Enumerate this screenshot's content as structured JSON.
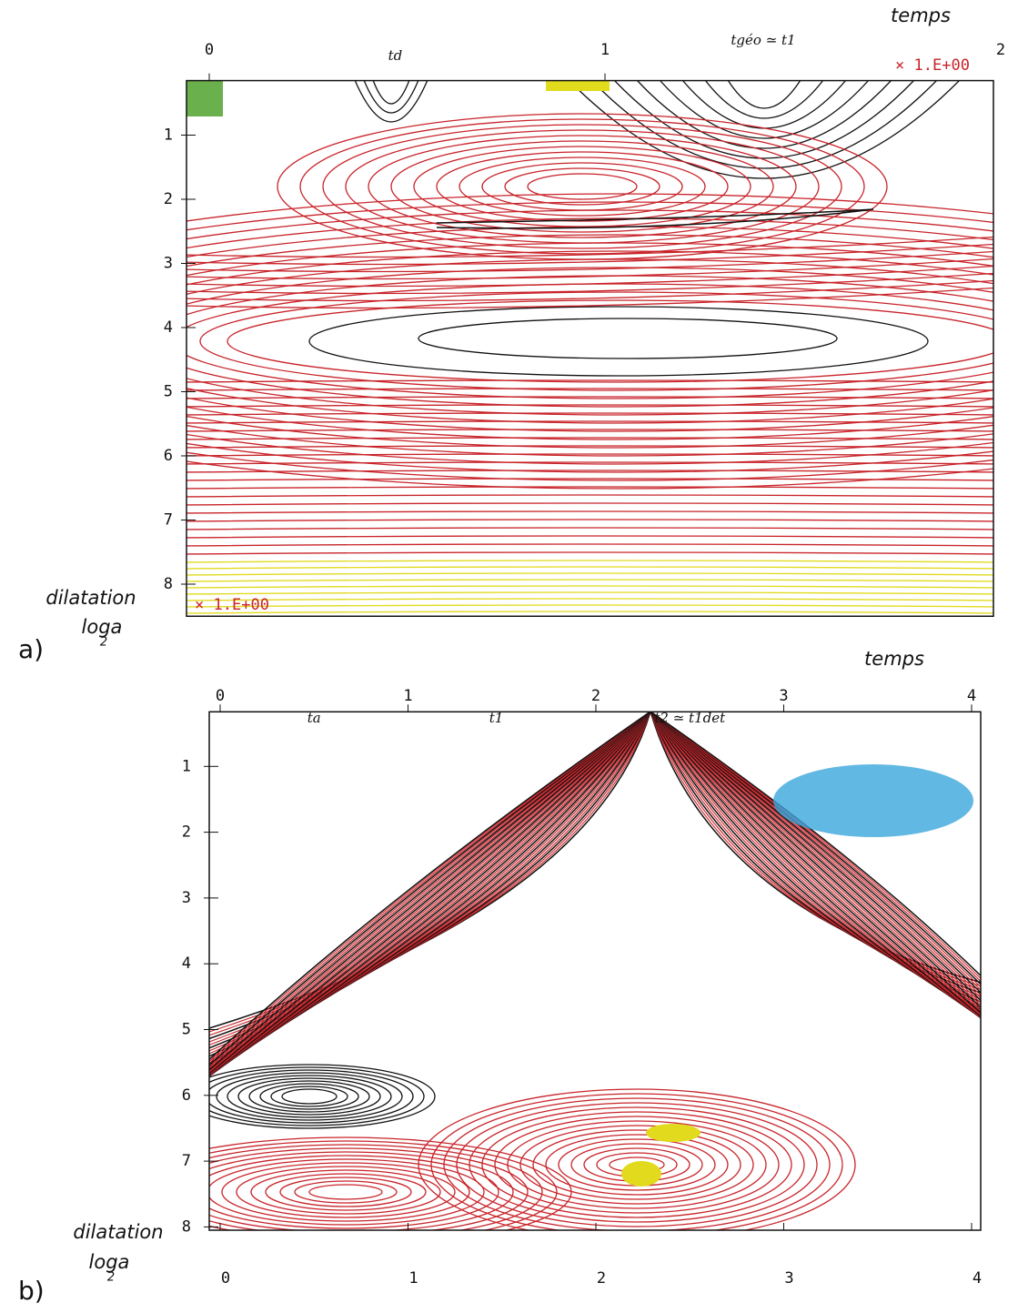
{
  "chart_data": [
    {
      "type": "contour",
      "panel": "a)",
      "xlabel": "temps",
      "ylabel": "dilatation",
      "ylabel_log": "loga",
      "ylabel_log_base": "2",
      "xlim": [
        0,
        2
      ],
      "xticks": [
        0,
        1,
        2
      ],
      "ylim": [
        0.15,
        8.5
      ],
      "yticks": [
        1,
        2,
        3,
        4,
        5,
        6,
        7,
        8
      ],
      "scale_notes": [
        "× 1.E+00",
        "× 1.E+00"
      ],
      "annotations": [
        {
          "text": "td",
          "x": 0.47
        },
        {
          "text": "tgéo ≃ t1",
          "x": 1.4
        }
      ]
    },
    {
      "type": "contour",
      "panel": "b)",
      "xlabel": "temps",
      "ylabel": "dilatation",
      "ylabel_log": "loga",
      "ylabel_log_base": "2",
      "xlim": [
        0,
        4
      ],
      "xticks": [
        0,
        1,
        2,
        3,
        4
      ],
      "ylim": [
        0.17,
        8.05
      ],
      "yticks": [
        1,
        2,
        3,
        4,
        5,
        6,
        7,
        8
      ],
      "annotations": [
        {
          "text": "ta",
          "x": 0.5
        },
        {
          "text": "t1",
          "x": 1.47
        },
        {
          "text": "t2 ≃ t1det",
          "x": 2.5
        }
      ]
    }
  ]
}
